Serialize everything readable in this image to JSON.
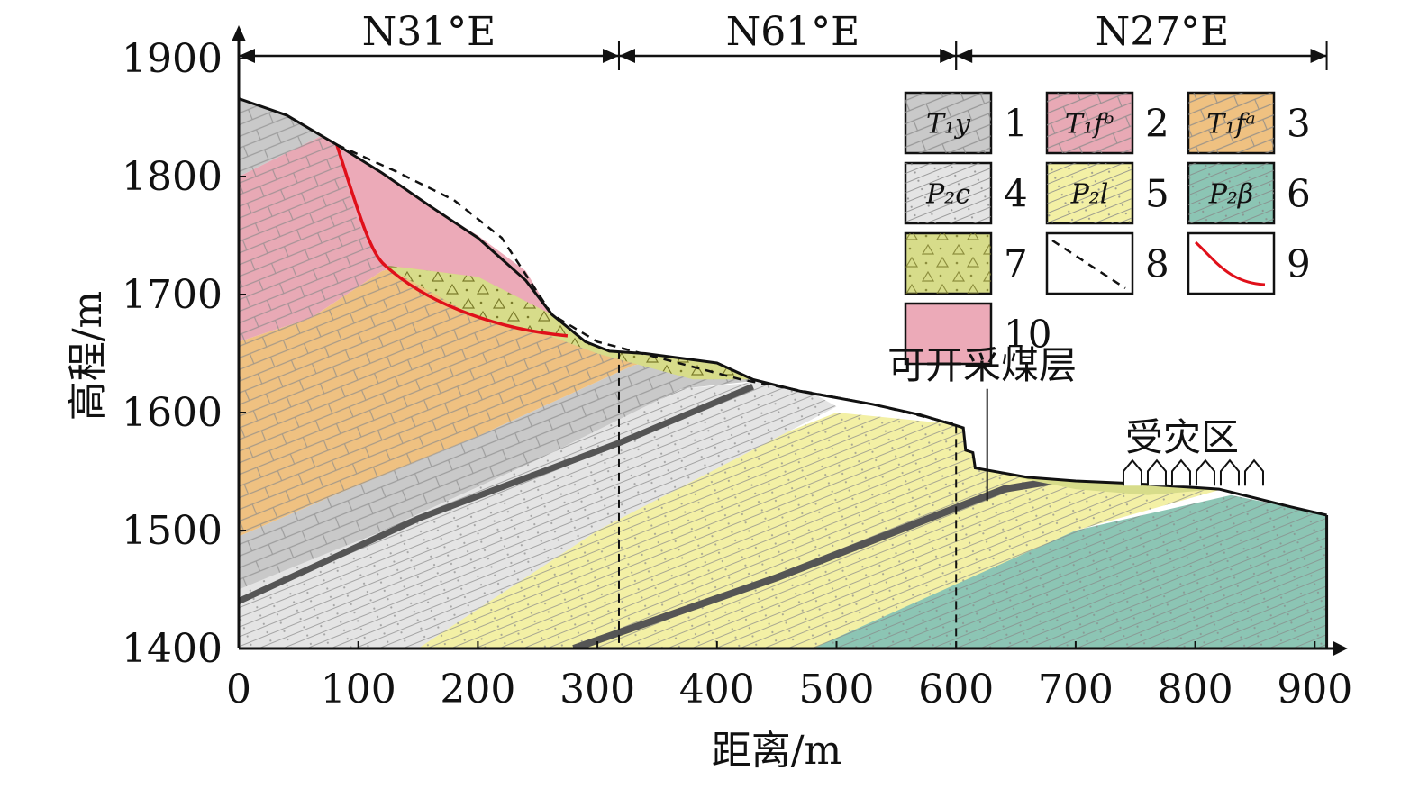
{
  "directions": [
    "N31°E",
    "N61°E",
    "N27°E"
  ],
  "axes": {
    "x_label": "距离/m",
    "y_label": "高程/m",
    "x_ticks": [
      "0",
      "100",
      "200",
      "300",
      "400",
      "500",
      "600",
      "700",
      "800",
      "900"
    ],
    "y_ticks": [
      "1900",
      "1800",
      "1700",
      "1600",
      "1500",
      "1400"
    ],
    "x_range": [
      0,
      920
    ],
    "y_range": [
      1400,
      1910
    ]
  },
  "annotations": {
    "coal_seam": "可开采煤层",
    "affected_zone": "受灾区"
  },
  "legend": [
    {
      "num": "1",
      "code": "T₁y",
      "color": "#c9c9c9"
    },
    {
      "num": "2",
      "code": "T₁fᵇ",
      "color": "#e8a9b5"
    },
    {
      "num": "3",
      "code": "T₁fᵃ",
      "color": "#efc181"
    },
    {
      "num": "4",
      "code": "P₂c",
      "color": "#e4e4e4"
    },
    {
      "num": "5",
      "code": "P₂l",
      "color": "#f3f0a5"
    },
    {
      "num": "6",
      "code": "P₂β",
      "color": "#8cc5b4"
    },
    {
      "num": "7",
      "code": "",
      "color": "#d7dc8a"
    },
    {
      "num": "8",
      "code": "",
      "color": "#ffffff"
    },
    {
      "num": "9",
      "code": "",
      "color": "#ffffff"
    },
    {
      "num": "10",
      "code": "",
      "color": "#ecaab8"
    }
  ],
  "colors": {
    "T1y": "#c9c9c9",
    "T1fb": "#e8a9b5",
    "T1fa": "#efc181",
    "P2c": "#e4e4e4",
    "P2l": "#f3f0a5",
    "P2b": "#8cc5b4",
    "deposit": "#d7dc8a",
    "slide_zone": "#ecaab8",
    "slip_surface": "#e0101a",
    "coal": "#555555"
  }
}
